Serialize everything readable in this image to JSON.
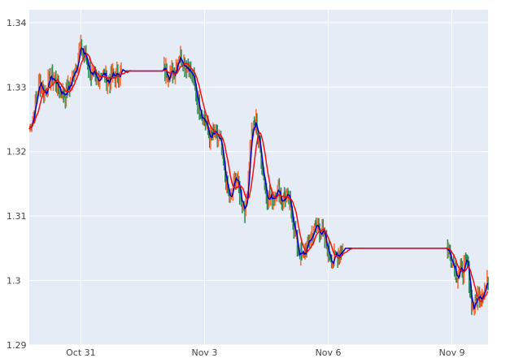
{
  "chart_data": {
    "type": "candlestick",
    "title": "",
    "xlabel": "",
    "ylabel": "",
    "ylim": [
      1.29,
      1.342
    ],
    "y_ticks": [
      {
        "value": 1.29,
        "label": "1.29"
      },
      {
        "value": 1.3,
        "label": "1.3"
      },
      {
        "value": 1.31,
        "label": "1.31"
      },
      {
        "value": 1.32,
        "label": "1.32"
      },
      {
        "value": 1.33,
        "label": "1.33"
      },
      {
        "value": 1.34,
        "label": "1.34"
      }
    ],
    "x_range": [
      "2020-10-29 18:00",
      "2020-11-09 21:00"
    ],
    "x_ticks": [
      {
        "value": "2020-10-31",
        "label": "Oct 31"
      },
      {
        "value": "2020-11-03",
        "label": "Nov 3"
      },
      {
        "value": "2020-11-06",
        "label": "Nov 6"
      },
      {
        "value": "2020-11-09",
        "label": "Nov 9"
      }
    ],
    "grid": true,
    "legend": "none",
    "colors": {
      "plot_bg": "#e5ecf6",
      "grid": "#ffffff",
      "up": "#ff6b35",
      "down": "#2e8b57",
      "short_ma": "#0000cc",
      "long_ma": "#ee1111"
    },
    "price_path": [
      [
        "2020-10-29 18:00",
        1.3235
      ],
      [
        "2020-10-29 21:00",
        1.3265
      ],
      [
        "2020-10-30 00:00",
        1.331
      ],
      [
        "2020-10-30 03:00",
        1.329
      ],
      [
        "2020-10-30 06:00",
        1.3315
      ],
      [
        "2020-10-30 09:00",
        1.331
      ],
      [
        "2020-10-30 12:00",
        1.3295
      ],
      [
        "2020-10-30 15:00",
        1.329
      ],
      [
        "2020-10-30 18:00",
        1.3305
      ],
      [
        "2020-10-30 21:00",
        1.3335
      ],
      [
        "2020-10-31 00:00",
        1.336
      ],
      [
        "2020-10-31 03:00",
        1.3345
      ],
      [
        "2020-10-31 06:00",
        1.332
      ],
      [
        "2020-10-31 09:00",
        1.3305
      ],
      [
        "2020-10-31 12:00",
        1.3325
      ],
      [
        "2020-10-31 15:00",
        1.331
      ],
      [
        "2020-10-31 18:00",
        1.3315
      ],
      [
        "2020-10-31 21:00",
        1.332
      ],
      [
        "2020-11-01 00:00",
        1.3325
      ],
      [
        "2020-11-02 00:00",
        1.3325
      ],
      [
        "2020-11-02 06:00",
        1.3322
      ],
      [
        "2020-11-02 09:00",
        1.335
      ],
      [
        "2020-11-02 12:00",
        1.334
      ],
      [
        "2020-11-02 15:00",
        1.333
      ],
      [
        "2020-11-02 18:00",
        1.3305
      ],
      [
        "2020-11-02 21:00",
        1.327
      ],
      [
        "2020-11-03 00:00",
        1.325
      ],
      [
        "2020-11-03 03:00",
        1.322
      ],
      [
        "2020-11-03 06:00",
        1.3225
      ],
      [
        "2020-11-03 09:00",
        1.3215
      ],
      [
        "2020-11-03 12:00",
        1.316
      ],
      [
        "2020-11-03 15:00",
        1.312
      ],
      [
        "2020-11-03 18:00",
        1.3165
      ],
      [
        "2020-11-03 21:00",
        1.313
      ],
      [
        "2020-11-04 00:00",
        1.311
      ],
      [
        "2020-11-04 03:00",
        1.3225
      ],
      [
        "2020-11-04 06:00",
        1.3245
      ],
      [
        "2020-11-04 09:00",
        1.319
      ],
      [
        "2020-11-04 12:00",
        1.3135
      ],
      [
        "2020-11-04 15:00",
        1.3125
      ],
      [
        "2020-11-04 18:00",
        1.3145
      ],
      [
        "2020-11-04 21:00",
        1.3125
      ],
      [
        "2020-11-05 00:00",
        1.313
      ],
      [
        "2020-11-05 03:00",
        1.3105
      ],
      [
        "2020-11-05 06:00",
        1.305
      ],
      [
        "2020-11-05 09:00",
        1.3035
      ],
      [
        "2020-11-05 12:00",
        1.3055
      ],
      [
        "2020-11-05 15:00",
        1.3075
      ],
      [
        "2020-11-05 18:00",
        1.3085
      ],
      [
        "2020-11-05 21:00",
        1.307
      ],
      [
        "2020-11-06 00:00",
        1.3045
      ],
      [
        "2020-11-06 03:00",
        1.303
      ],
      [
        "2020-11-06 06:00",
        1.3045
      ],
      [
        "2020-11-06 09:00",
        1.305
      ],
      [
        "2020-11-07 00:00",
        1.305
      ],
      [
        "2020-11-08 21:00",
        1.305
      ],
      [
        "2020-11-09 00:00",
        1.3035
      ],
      [
        "2020-11-09 03:00",
        1.301
      ],
      [
        "2020-11-09 06:00",
        1.3015
      ],
      [
        "2020-11-09 09:00",
        1.3025
      ],
      [
        "2020-11-09 12:00",
        1.2955
      ],
      [
        "2020-11-09 15:00",
        1.2975
      ],
      [
        "2020-11-09 18:00",
        1.2985
      ],
      [
        "2020-11-09 21:00",
        1.2995
      ]
    ]
  }
}
